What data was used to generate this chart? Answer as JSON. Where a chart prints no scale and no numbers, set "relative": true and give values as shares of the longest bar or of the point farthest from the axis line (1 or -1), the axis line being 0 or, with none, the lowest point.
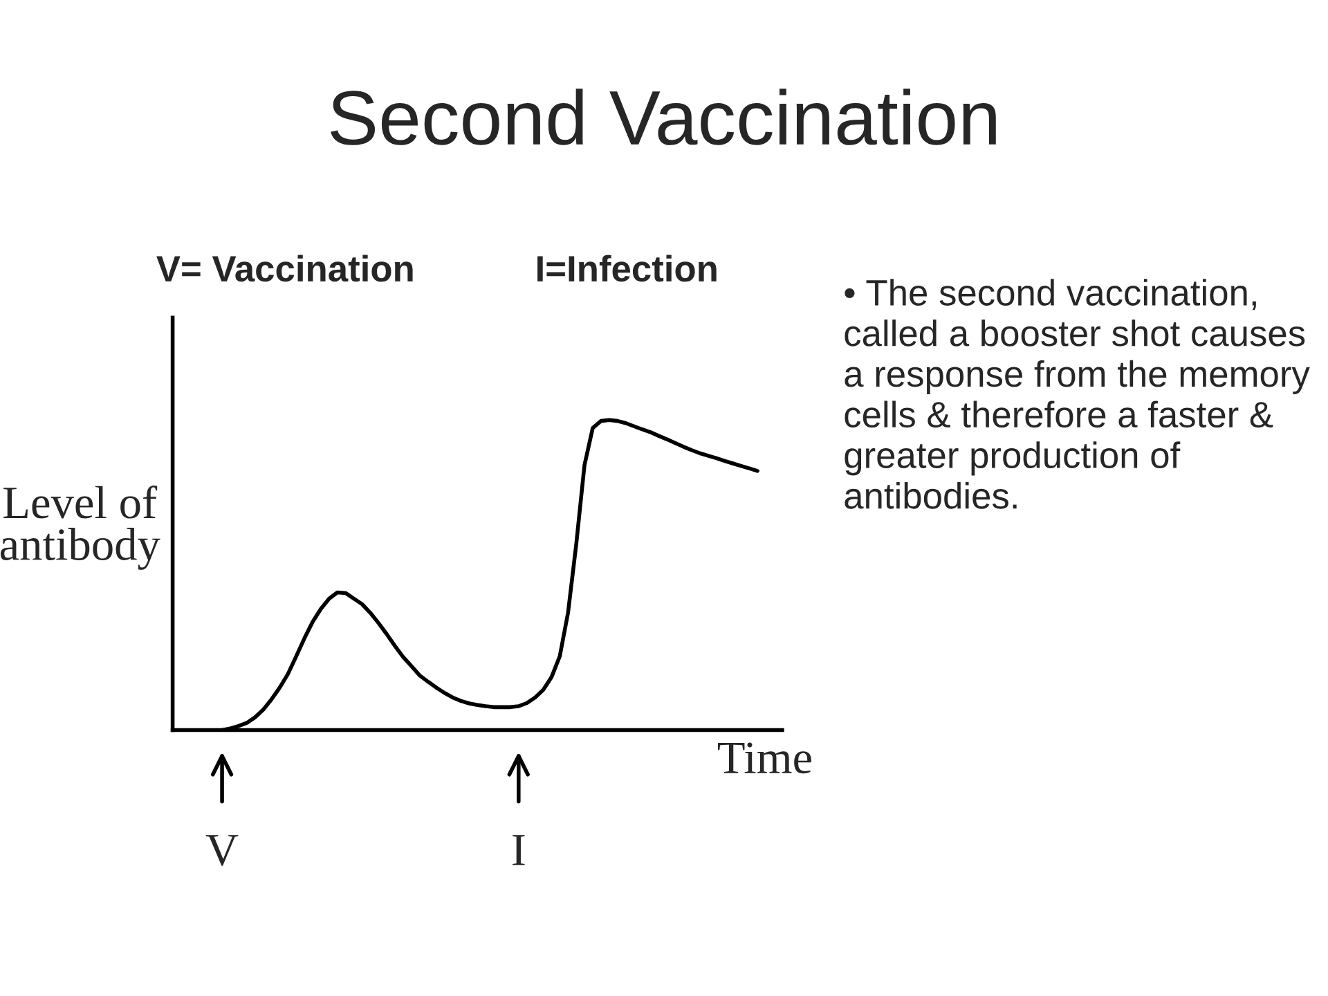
{
  "chart_data": {
    "type": "line",
    "title": "Second Vaccination",
    "xlabel": "Time",
    "ylabel": "Level of\nantibody",
    "relative": true,
    "categories": [
      null,
      null,
      null,
      null,
      null,
      null,
      null,
      null,
      null,
      null,
      null,
      null,
      null,
      null,
      null,
      null,
      null,
      null,
      null,
      null,
      null,
      null,
      null,
      null,
      null,
      null,
      null,
      null,
      null,
      null,
      null,
      null,
      null,
      null,
      null,
      null,
      null,
      null,
      null,
      null,
      null,
      null,
      null,
      null,
      null,
      null,
      null,
      null,
      null,
      null,
      null,
      null,
      null,
      null,
      null,
      null,
      null,
      null,
      null,
      null,
      null,
      null,
      null,
      null,
      null,
      null
    ],
    "series": [
      {
        "color": "#000000",
        "values": [
          0,
          0.005,
          0.013,
          0.023,
          0.041,
          0.066,
          0.099,
          0.137,
          0.181,
          0.238,
          0.296,
          0.349,
          0.391,
          0.424,
          0.444,
          0.442,
          0.424,
          0.406,
          0.378,
          0.345,
          0.309,
          0.271,
          0.235,
          0.206,
          0.176,
          0.156,
          0.137,
          0.12,
          0.105,
          0.094,
          0.086,
          0.081,
          0.077,
          0.074,
          0.074,
          0.074,
          0.077,
          0.087,
          0.105,
          0.13,
          0.171,
          0.238,
          0.378,
          0.6,
          0.855,
          0.974,
          0.997,
          1,
          0.997,
          0.99,
          0.98,
          0.97,
          0.961,
          0.949,
          0.938,
          0.926,
          0.914,
          0.903,
          0.893,
          0.885,
          0.877,
          0.868,
          0.86,
          0.852,
          0.844,
          0.836
        ]
      }
    ],
    "annotations": [
      "V= Vaccination",
      "I=Infection",
      "V",
      "I",
      "• The second vaccination, called a booster shot causes a response from the memory cells & therefore a faster & greater production of antibodies."
    ],
    "marker": "none",
    "line_style": "solid",
    "legend": false
  }
}
